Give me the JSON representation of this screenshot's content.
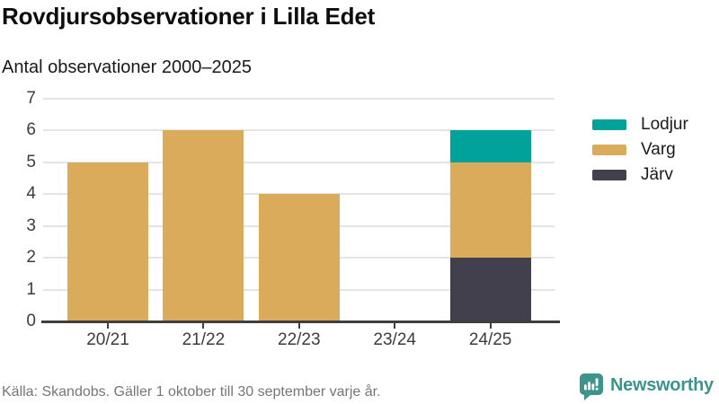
{
  "header": {
    "title": "Rovdjursobservationer i Lilla Edet",
    "subtitle": "Antal observationer 2000–2025"
  },
  "chart_data": {
    "type": "bar",
    "stacked": true,
    "title": "Rovdjursobservationer i Lilla Edet",
    "subtitle": "Antal observationer 2000–2025",
    "categories": [
      "20/21",
      "21/22",
      "22/23",
      "23/24",
      "24/25"
    ],
    "series": [
      {
        "name": "Järv",
        "color": "#42404d",
        "values": [
          0,
          0,
          0,
          0,
          2
        ]
      },
      {
        "name": "Varg",
        "color": "#d9ab5b",
        "values": [
          5,
          6,
          4,
          0,
          3
        ]
      },
      {
        "name": "Lodjur",
        "color": "#00a29a",
        "values": [
          0,
          0,
          0,
          0,
          1
        ]
      }
    ],
    "totals": [
      5,
      6,
      4,
      0,
      6
    ],
    "xlabel": "",
    "ylabel": "",
    "ylim": [
      0,
      7
    ],
    "yticks": [
      0,
      1,
      2,
      3,
      4,
      5,
      6,
      7
    ],
    "grid": true,
    "legend_position": "right",
    "legend": [
      {
        "label": "Lodjur",
        "color": "#00a29a"
      },
      {
        "label": "Varg",
        "color": "#d9ab5b"
      },
      {
        "label": "Järv",
        "color": "#42404d"
      }
    ]
  },
  "footer": {
    "source": "Källa: Skandobs. Gäller 1 oktober till 30 september varje år."
  },
  "brand": {
    "name": "Newsworthy",
    "color": "#3d948d",
    "icon": "bar-chart-speech-bubble-icon"
  },
  "colors": {
    "axis": "#3f3f3f",
    "gridline": "#e4e4e4",
    "background": "#ffffff"
  }
}
